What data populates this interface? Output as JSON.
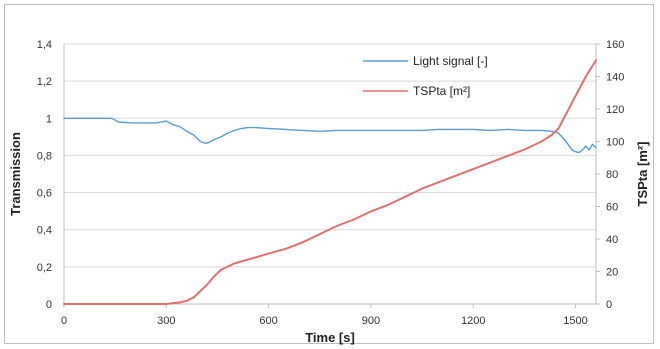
{
  "chart_data": {
    "type": "line",
    "xlabel": "Time [s]",
    "ylabel_left": "Transmission",
    "ylabel_right": "TSPta [m²]",
    "xlim": [
      0,
      1560
    ],
    "ylim_left": [
      0,
      1.4
    ],
    "ylim_right": [
      0,
      160
    ],
    "x_ticks": [
      {
        "value": 0,
        "label": "0"
      },
      {
        "value": 300,
        "label": "300"
      },
      {
        "value": 600,
        "label": "600"
      },
      {
        "value": 900,
        "label": "900"
      },
      {
        "value": 1200,
        "label": "1200"
      },
      {
        "value": 1500,
        "label": "1500"
      }
    ],
    "y_left_ticks": [
      {
        "value": 0,
        "label": "0"
      },
      {
        "value": 0.2,
        "label": "0,2"
      },
      {
        "value": 0.4,
        "label": "0,4"
      },
      {
        "value": 0.6,
        "label": "0,6"
      },
      {
        "value": 0.8,
        "label": "0,8"
      },
      {
        "value": 1.0,
        "label": "1"
      },
      {
        "value": 1.2,
        "label": "1,2"
      },
      {
        "value": 1.4,
        "label": "1,4"
      }
    ],
    "y_right_ticks": [
      {
        "value": 0,
        "label": "0"
      },
      {
        "value": 20,
        "label": "20"
      },
      {
        "value": 40,
        "label": "40"
      },
      {
        "value": 60,
        "label": "60"
      },
      {
        "value": 80,
        "label": "80"
      },
      {
        "value": 100,
        "label": "100"
      },
      {
        "value": 120,
        "label": "120"
      },
      {
        "value": 140,
        "label": "140"
      },
      {
        "value": 160,
        "label": "160"
      }
    ],
    "grid": true,
    "legend_position": "top-right",
    "series": [
      {
        "name": "Light signal [-]",
        "axis": "left",
        "color": "#5b9bd5",
        "x": [
          0,
          50,
          100,
          140,
          160,
          200,
          240,
          270,
          300,
          320,
          340,
          360,
          380,
          400,
          415,
          425,
          440,
          460,
          480,
          500,
          520,
          540,
          560,
          600,
          650,
          700,
          750,
          800,
          850,
          900,
          950,
          1000,
          1050,
          1100,
          1150,
          1200,
          1250,
          1300,
          1350,
          1400,
          1430,
          1450,
          1470,
          1490,
          1500,
          1510,
          1520,
          1530,
          1540,
          1550,
          1560
        ],
        "y": [
          1.0,
          1.0,
          1.0,
          1.0,
          0.98,
          0.975,
          0.975,
          0.975,
          0.985,
          0.965,
          0.955,
          0.93,
          0.91,
          0.875,
          0.865,
          0.87,
          0.885,
          0.9,
          0.92,
          0.935,
          0.945,
          0.95,
          0.95,
          0.945,
          0.94,
          0.935,
          0.93,
          0.935,
          0.935,
          0.935,
          0.935,
          0.935,
          0.935,
          0.94,
          0.94,
          0.94,
          0.935,
          0.94,
          0.935,
          0.935,
          0.93,
          0.92,
          0.88,
          0.83,
          0.82,
          0.815,
          0.83,
          0.85,
          0.83,
          0.86,
          0.84
        ]
      },
      {
        "name": "TSPta [m²]",
        "axis": "right",
        "color": "#e07070",
        "x": [
          0,
          100,
          200,
          300,
          340,
          360,
          380,
          400,
          420,
          440,
          460,
          480,
          500,
          550,
          600,
          650,
          700,
          750,
          800,
          850,
          900,
          950,
          1000,
          1050,
          1100,
          1150,
          1200,
          1250,
          1300,
          1350,
          1400,
          1430,
          1450,
          1470,
          1500,
          1530,
          1560
        ],
        "y": [
          0,
          0,
          0,
          0,
          1,
          2,
          4,
          8,
          12,
          17,
          21,
          23,
          25,
          28,
          31,
          34,
          38,
          43,
          48,
          52,
          57,
          61,
          66,
          71,
          75,
          79,
          83,
          87,
          91,
          95,
          100,
          104,
          108,
          116,
          128,
          140,
          150
        ]
      }
    ]
  }
}
